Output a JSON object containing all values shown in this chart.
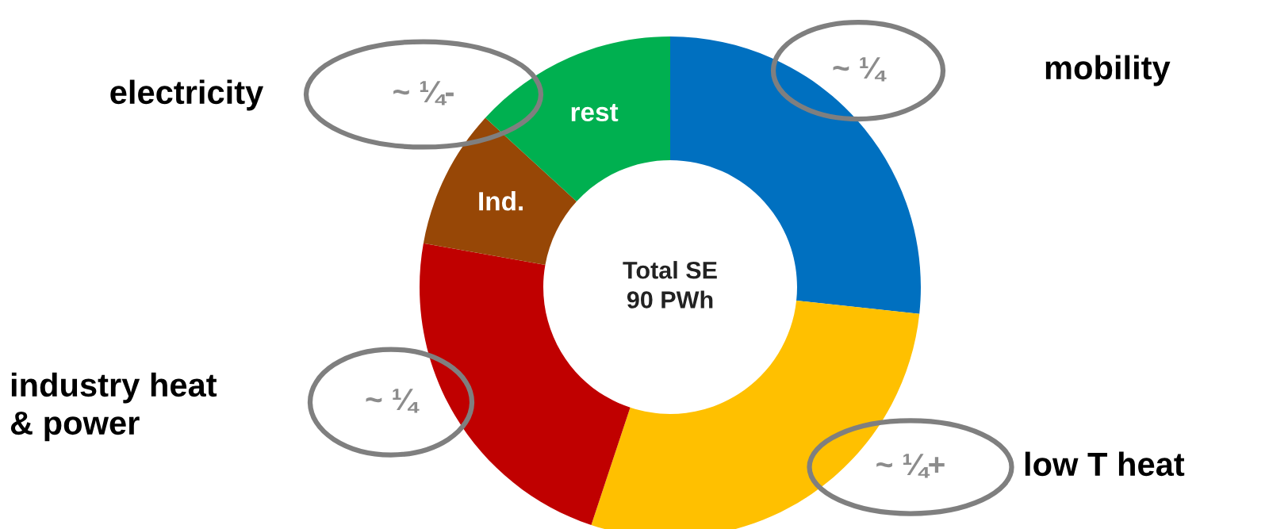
{
  "chart_data": {
    "type": "donut",
    "categories": [
      "mobility",
      "low T heat",
      "industry heat\n& power",
      "Ind.",
      "rest"
    ],
    "values": [
      26.7,
      28.4,
      22.7,
      9.0,
      13.2
    ],
    "colors": [
      "#0070c0",
      "#ffc000",
      "#c00000",
      "#974706",
      "#00b050"
    ],
    "legend": false,
    "annotations": [
      "Total SE\n90 PWh",
      "electricity",
      "~ ¼",
      "~ ¼+",
      "~ ¼",
      "~ ¼-"
    ]
  }
}
